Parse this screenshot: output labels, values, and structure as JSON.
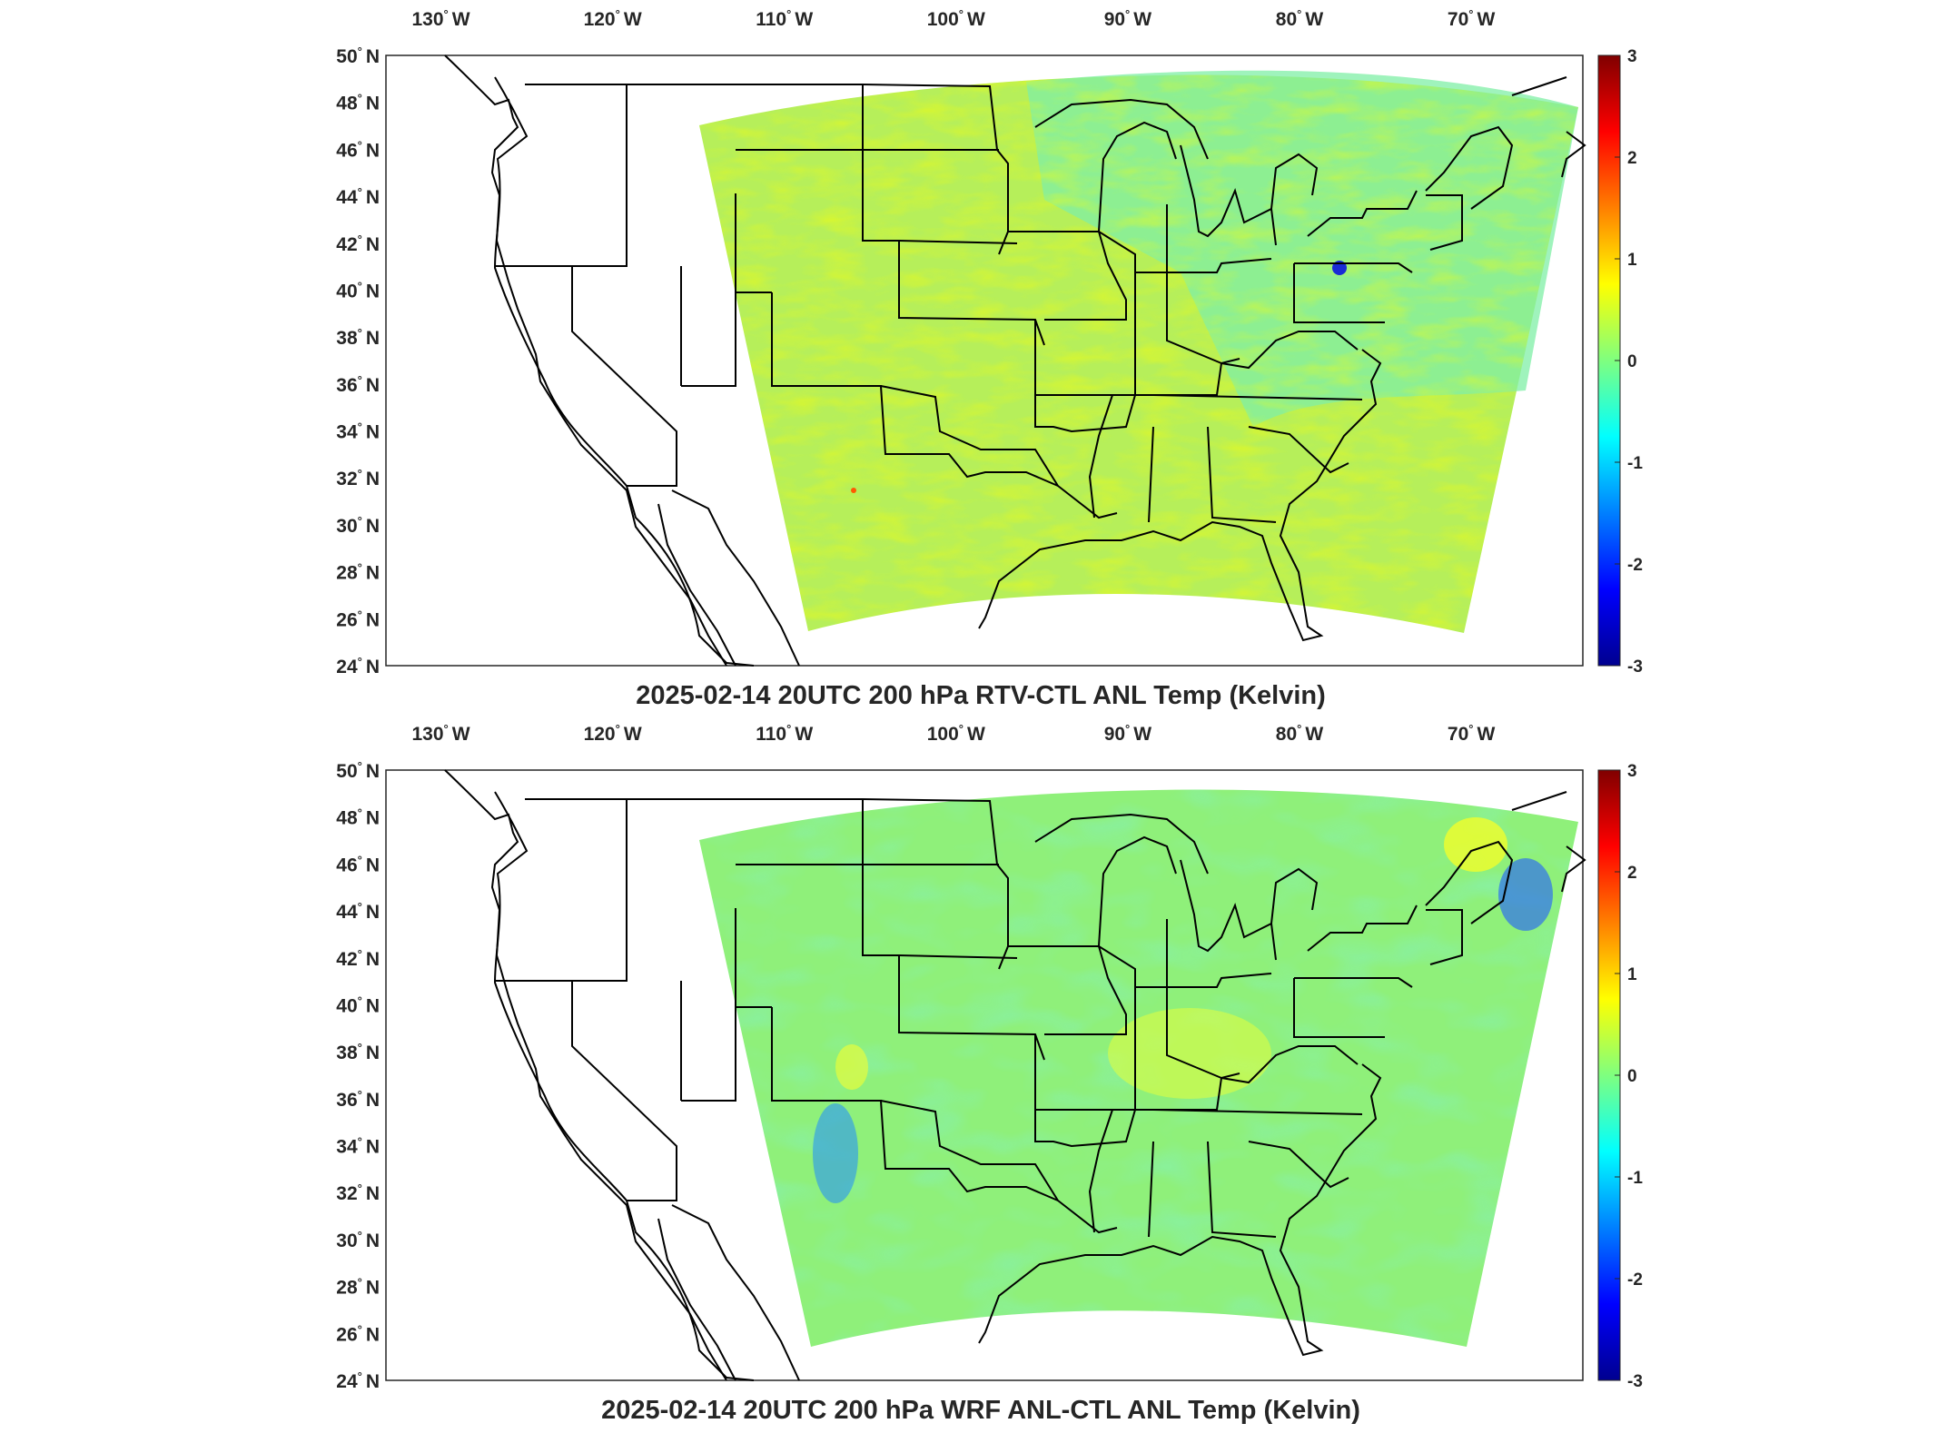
{
  "figure": {
    "panels": [
      {
        "id": "rtv",
        "title": "2025-02-14 20UTC 200 hPa RTV-CTL ANL Temp (Kelvin)",
        "field_variant": "rtv"
      },
      {
        "id": "wrf",
        "title": "2025-02-14 20UTC 200 hPa WRF ANL-CTL ANL Temp (Kelvin)",
        "field_variant": "wrf"
      }
    ],
    "lon_ticks": [
      {
        "value": -130,
        "label": "130",
        "suffix": "W"
      },
      {
        "value": -120,
        "label": "120",
        "suffix": "W"
      },
      {
        "value": -110,
        "label": "110",
        "suffix": "W"
      },
      {
        "value": -100,
        "label": "100",
        "suffix": "W"
      },
      {
        "value": -90,
        "label": "90",
        "suffix": "W"
      },
      {
        "value": -80,
        "label": "80",
        "suffix": "W"
      },
      {
        "value": -70,
        "label": "70",
        "suffix": "W"
      }
    ],
    "lat_ticks": [
      {
        "value": 50,
        "label": "50",
        "suffix": "N"
      },
      {
        "value": 48,
        "label": "48",
        "suffix": "N"
      },
      {
        "value": 46,
        "label": "46",
        "suffix": "N"
      },
      {
        "value": 44,
        "label": "44",
        "suffix": "N"
      },
      {
        "value": 42,
        "label": "42",
        "suffix": "N"
      },
      {
        "value": 40,
        "label": "40",
        "suffix": "N"
      },
      {
        "value": 38,
        "label": "38",
        "suffix": "N"
      },
      {
        "value": 36,
        "label": "36",
        "suffix": "N"
      },
      {
        "value": 34,
        "label": "34",
        "suffix": "N"
      },
      {
        "value": 32,
        "label": "32",
        "suffix": "N"
      },
      {
        "value": 30,
        "label": "30",
        "suffix": "N"
      },
      {
        "value": 28,
        "label": "28",
        "suffix": "N"
      },
      {
        "value": 26,
        "label": "26",
        "suffix": "N"
      },
      {
        "value": 24,
        "label": "24",
        "suffix": "N"
      }
    ],
    "colorbar": {
      "min": -3,
      "max": 3,
      "ticks": [
        "3",
        "2",
        "1",
        "0",
        "-1",
        "-2",
        "-3"
      ],
      "colormap": "jet"
    },
    "colors": {
      "land_outline": "#000000",
      "axes": "#262626",
      "field_base": "#8fe86a"
    }
  }
}
